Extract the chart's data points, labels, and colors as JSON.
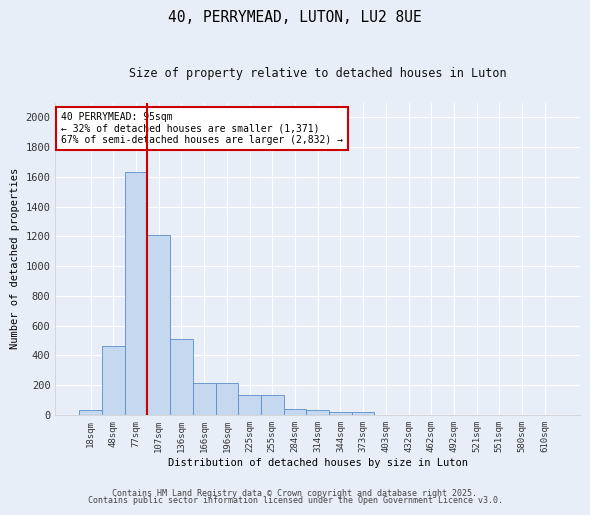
{
  "title": "40, PERRYMEAD, LUTON, LU2 8UE",
  "subtitle": "Size of property relative to detached houses in Luton",
  "xlabel": "Distribution of detached houses by size in Luton",
  "ylabel": "Number of detached properties",
  "categories": [
    "18sqm",
    "48sqm",
    "77sqm",
    "107sqm",
    "136sqm",
    "166sqm",
    "196sqm",
    "225sqm",
    "255sqm",
    "284sqm",
    "314sqm",
    "344sqm",
    "373sqm",
    "403sqm",
    "432sqm",
    "462sqm",
    "492sqm",
    "521sqm",
    "551sqm",
    "580sqm",
    "610sqm"
  ],
  "values": [
    30,
    460,
    1630,
    1210,
    510,
    215,
    215,
    130,
    130,
    40,
    35,
    20,
    18,
    0,
    0,
    0,
    0,
    0,
    0,
    0,
    0
  ],
  "bar_color": "#c5d8f0",
  "bar_edge_color": "#5b8dc8",
  "vline_x": 2.5,
  "vline_color": "#cc0000",
  "annotation_title": "40 PERRYMEAD: 95sqm",
  "annotation_line1": "← 32% of detached houses are smaller (1,371)",
  "annotation_line2": "67% of semi-detached houses are larger (2,832) →",
  "annotation_box_color": "white",
  "annotation_box_edge": "#cc0000",
  "ylim": [
    0,
    2100
  ],
  "yticks": [
    0,
    200,
    400,
    600,
    800,
    1000,
    1200,
    1400,
    1600,
    1800,
    2000
  ],
  "bg_color": "#e8eef8",
  "grid_color": "#ffffff",
  "footer1": "Contains HM Land Registry data © Crown copyright and database right 2025.",
  "footer2": "Contains public sector information licensed under the Open Government Licence v3.0."
}
